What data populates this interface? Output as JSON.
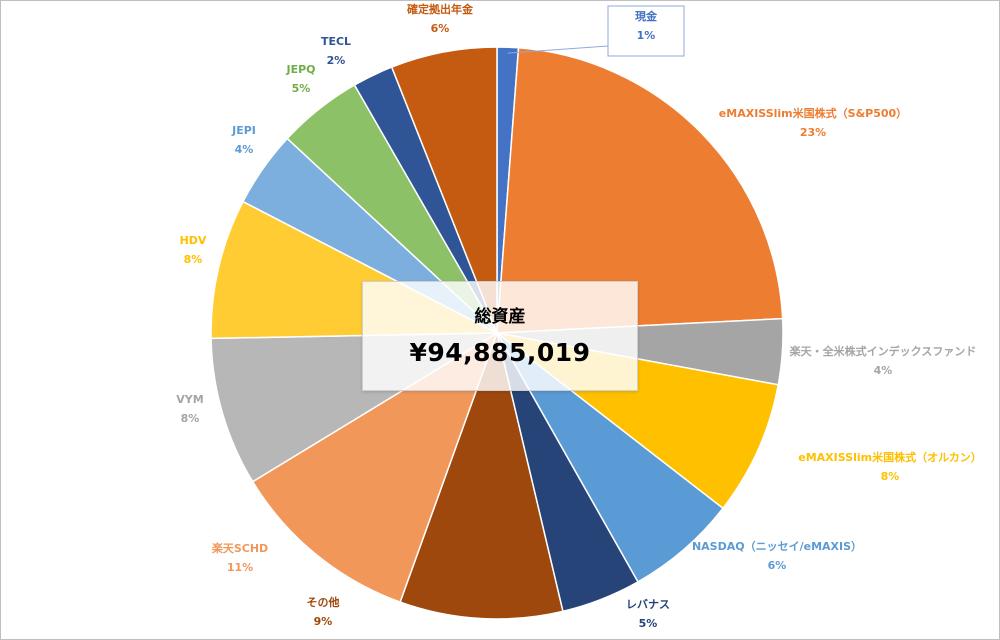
{
  "chart_data": {
    "type": "pie",
    "center_title": "総資産",
    "center_value": "¥94,885,019",
    "slices": [
      {
        "name": "現金",
        "pct_label": "1%",
        "value": 1.2,
        "color": "#4472C4",
        "label_color": "#4472C4",
        "callout": true
      },
      {
        "name": "eMAXISSlim米国株式（S&P500）",
        "pct_label": "23%",
        "value": 23,
        "color": "#ED7D31",
        "label_color": "#ED7D31"
      },
      {
        "name": "楽天・全米株式インデックスファンド",
        "pct_label": "4%",
        "value": 3.7,
        "color": "#A5A5A5",
        "label_color": "#A5A5A5"
      },
      {
        "name": "eMAXISSlim米国株式（オルカン）",
        "pct_label": "8%",
        "value": 7.6,
        "color": "#FFC000",
        "label_color": "#FFC000"
      },
      {
        "name": "NASDAQ（ニッセイ/eMAXIS）",
        "pct_label": "6%",
        "value": 6.3,
        "color": "#5B9BD5",
        "label_color": "#5B9BD5"
      },
      {
        "name": "レバナス",
        "pct_label": "5%",
        "value": 4.5,
        "color": "#264478",
        "label_color": "#264478"
      },
      {
        "name": "その他",
        "pct_label": "9%",
        "value": 9.2,
        "color": "#9E480E",
        "label_color": "#9E480E"
      },
      {
        "name": "楽天SCHD",
        "pct_label": "11%",
        "value": 10.8,
        "color": "#F1975A",
        "label_color": "#F1975A"
      },
      {
        "name": "VYM",
        "pct_label": "8%",
        "value": 8.4,
        "color": "#B7B7B7",
        "label_color": "#A5A5A5"
      },
      {
        "name": "HDV",
        "pct_label": "8%",
        "value": 7.9,
        "color": "#FFCD33",
        "label_color": "#FFC000"
      },
      {
        "name": "JEPI",
        "pct_label": "4%",
        "value": 4.3,
        "color": "#7CAFDD",
        "label_color": "#5B9BD5"
      },
      {
        "name": "JEPQ",
        "pct_label": "5%",
        "value": 4.8,
        "color": "#8CC168",
        "label_color": "#70AD47"
      },
      {
        "name": "TECL",
        "pct_label": "2%",
        "value": 2.3,
        "color": "#2F5597",
        "label_color": "#2F5597"
      },
      {
        "name": "確定拠出年金",
        "pct_label": "6%",
        "value": 6.0,
        "color": "#C55A11",
        "label_color": "#C55A11"
      }
    ]
  }
}
